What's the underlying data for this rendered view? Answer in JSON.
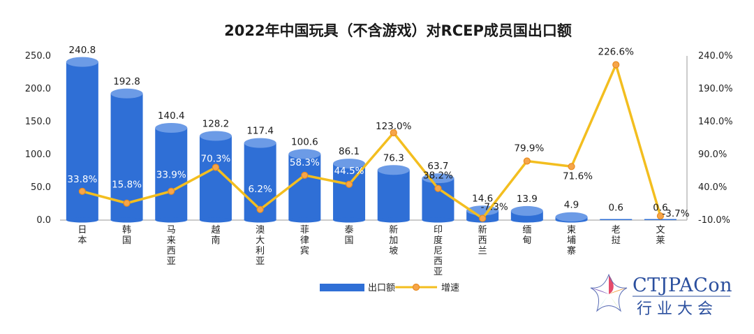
{
  "chart_data": {
    "type": "bar",
    "title": "2022年中国玩具（不含游戏）对RCEP成员国出口额",
    "categories": [
      "日本",
      "韩国",
      "马来西亚",
      "越南",
      "澳大利亚",
      "菲律宾",
      "泰国",
      "新加坡",
      "印度尼西亚",
      "新西兰",
      "缅甸",
      "柬埔寨",
      "老挝",
      "文莱"
    ],
    "series": [
      {
        "name": "出口额",
        "axis": "left",
        "values": [
          240.8,
          192.8,
          140.4,
          128.2,
          117.4,
          100.6,
          86.1,
          76.3,
          63.7,
          14.6,
          13.9,
          4.9,
          0.6,
          0.6
        ],
        "labels": [
          "240.8",
          "192.8",
          "140.4",
          "128.2",
          "117.4",
          "100.6",
          "86.1",
          "76.3",
          "63.7",
          "14.6",
          "13.9",
          "4.9",
          "0.6",
          "0.6"
        ]
      },
      {
        "name": "增速",
        "axis": "right",
        "type": "line",
        "values": [
          33.8,
          15.8,
          33.9,
          70.3,
          6.2,
          58.3,
          44.5,
          123.0,
          38.2,
          -7.3,
          79.9,
          71.6,
          226.6,
          -3.7
        ],
        "labels": [
          "33.8%",
          "15.8%",
          "33.9%",
          "70.3%",
          "6.2%",
          "58.3%",
          "44.5%",
          "123.0%",
          "38.2%",
          "-7.3%",
          "79.9%",
          "71.6%",
          "226.6%",
          "-3.7%"
        ]
      }
    ],
    "ylim": [
      0,
      250
    ],
    "yticks": [
      "0.0",
      "50.0",
      "100.0",
      "150.0",
      "200.0",
      "250.0"
    ],
    "y2lim": [
      -10,
      240
    ],
    "y2ticks": [
      "-10.0%",
      "40.0%",
      "90.0%",
      "140.0%",
      "190.0%",
      "240.0%"
    ],
    "legend": [
      "出口额",
      "增速"
    ],
    "legend_position": "bottom",
    "colors": {
      "bar": "#2f6fd6",
      "bar_top": "#6c9be6",
      "line": "#f3be1f",
      "marker_fill": "#f6a54a",
      "marker_edge": "#e88b1e"
    }
  },
  "logo": {
    "text_en": "CTJPACon",
    "text_cn": "行业大会"
  }
}
